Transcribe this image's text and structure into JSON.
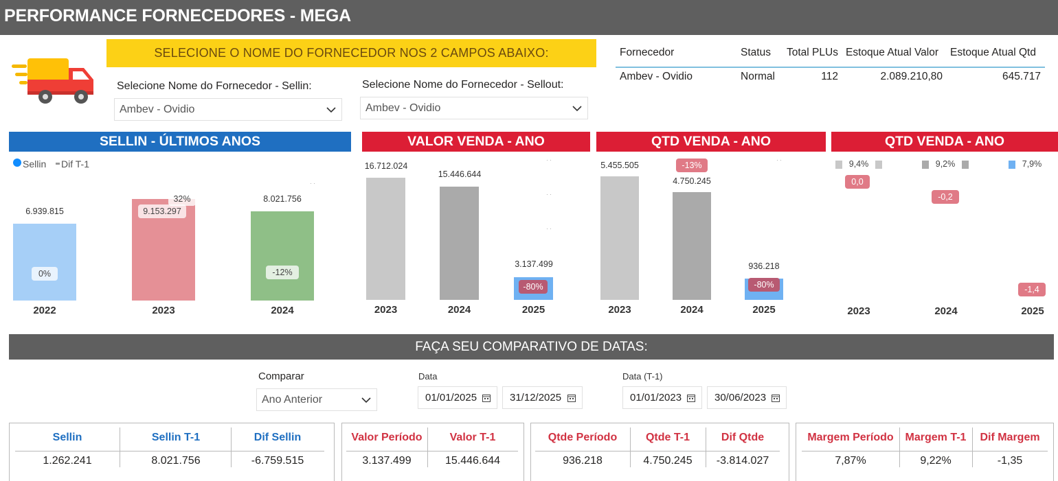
{
  "header": {
    "title": "PERFORMANCE FORNECEDORES - MEGA"
  },
  "banner": {
    "text": "SELECIONE O NOME DO FORNECEDOR NOS 2 CAMPOS ABAIXO:"
  },
  "slicers": {
    "sellin": {
      "label": "Selecione Nome do Fornecedor - Sellin:",
      "value": "Ambev - Ovidio"
    },
    "sellout": {
      "label": "Selecione Nome do Fornecedor - Sellout:",
      "value": "Ambev - Ovidio"
    }
  },
  "supplier_table": {
    "headers": [
      "Fornecedor",
      "Status",
      "Total PLUs",
      "Estoque Atual Valor",
      "Estoque Atual Qtd"
    ],
    "row": [
      "Ambev - Ovidio",
      "Normal",
      "112",
      "2.089.210,80",
      "645.717"
    ]
  },
  "colors": {
    "blue": "#1f6fc1",
    "red": "#dc1e35",
    "gray_header": "#5f5f5f",
    "yellow": "#fcd116"
  },
  "chart_data": [
    {
      "type": "bar",
      "title": "SELLIN - ÚLTIMOS ANOS",
      "legend": [
        "Sellin",
        "Dif T-1"
      ],
      "categories": [
        "2022",
        "2023",
        "2024"
      ],
      "value_labels": [
        "6.939.815",
        "9.153.297",
        "8.021.756"
      ],
      "dif_labels": [
        "0%",
        "32%",
        "-12%"
      ],
      "values": [
        6939815,
        9153297,
        8021756
      ],
      "bar_colors": [
        "#a6cff7",
        "#e59096",
        "#8fbf87"
      ]
    },
    {
      "type": "bar",
      "title": "VALOR VENDA - ANO",
      "categories": [
        "2023",
        "2024",
        "2025"
      ],
      "value_labels": [
        "16.712.024",
        "15.446.644",
        "3.137.499"
      ],
      "values": [
        16712024,
        15446644,
        3137499
      ],
      "dif_labels": [
        "-80%"
      ]
    },
    {
      "type": "bar",
      "title": "QTD VENDA - ANO",
      "categories": [
        "2023",
        "2024",
        "2025"
      ],
      "value_labels": [
        "5.455.505",
        "4.750.245",
        "936.218"
      ],
      "values": [
        5455505,
        4750245,
        936218
      ],
      "dif_labels": [
        "-13%",
        "-80%"
      ]
    },
    {
      "type": "bar",
      "title": "QTD VENDA - ANO",
      "categories": [
        "2023",
        "2024",
        "2025"
      ],
      "margin_labels": [
        "9,4%",
        "9,2%",
        "7,9%"
      ],
      "margins": [
        9.4,
        9.2,
        7.9
      ],
      "dif_labels": [
        "0,0",
        "-0,2",
        "-1,4"
      ],
      "difs": [
        0.0,
        -0.2,
        -1.4
      ]
    }
  ],
  "compare": {
    "bar_title": "FAÇA SEU COMPARATIVO DE DATAS:",
    "comparar_label": "Comparar",
    "comparar_value": "Ano Anterior",
    "data_label": "Data",
    "data_start": "01/01/2025",
    "data_end": "31/12/2025",
    "data_t1_label": "Data (T-1)",
    "data_t1_start": "01/01/2023",
    "data_t1_end": "30/06/2023"
  },
  "kpis": {
    "sellin": {
      "headers": [
        "Sellin",
        "Sellin T-1",
        "Dif Sellin"
      ],
      "values": [
        "1.262.241",
        "8.021.756",
        "-6.759.515"
      ]
    },
    "valor": {
      "headers": [
        "Valor Período",
        "Valor T-1"
      ],
      "values": [
        "3.137.499",
        "15.446.644"
      ]
    },
    "qtde": {
      "headers": [
        "Qtde Período",
        "Qtde T-1",
        "Dif Qtde"
      ],
      "values": [
        "936.218",
        "4.750.245",
        "-3.814.027"
      ]
    },
    "margem": {
      "headers": [
        "Margem Período",
        "Margem T-1",
        "Dif Margem"
      ],
      "values": [
        "7,87%",
        "9,22%",
        "-1,35"
      ]
    }
  }
}
